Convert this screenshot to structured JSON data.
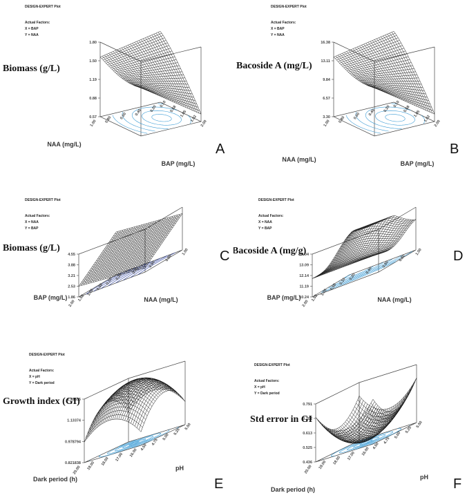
{
  "chart_data": [
    {
      "panel": "A",
      "type": "surface",
      "header": "DESIGN-EXPERT Plot",
      "factors_title": "Actual Factors:",
      "x_factor": "X = BAP",
      "y_factor": "Y = NAA",
      "zlabel": "Biomass (g/L)",
      "ylabel_left": "NAA (mg/L)",
      "xlabel_right": "BAP (mg/L)",
      "z_ticks": [
        "1.80",
        "1.50",
        "1.19",
        "0.88",
        "0.57"
      ],
      "left_ticks": [
        "1.00",
        "0.80",
        "0.60",
        "0.40",
        "0.20"
      ],
      "right_ticks": [
        "0.10",
        "0.58",
        "1.05",
        "1.52",
        "2.00"
      ],
      "z_range": [
        0.57,
        1.8
      ],
      "surface": {
        "a": 0.5,
        "b": 0.5,
        "p": 0.8,
        "q": 0.8,
        "base": 0.12,
        "peak": 0.95,
        "slope": 0.05,
        "kind": "saddle"
      }
    },
    {
      "panel": "B",
      "type": "surface",
      "header": "DESIGN-EXPERT Plot",
      "factors_title": "Actual Factors:",
      "x_factor": "X = BAP",
      "y_factor": "Y = NAA",
      "zlabel": "Bacoside A (mg/L)",
      "ylabel_left": "NAA (mg/L)",
      "xlabel_right": "BAP (mg/L)",
      "z_ticks": [
        "16.38",
        "13.11",
        "9.84",
        "6.57",
        "3.30"
      ],
      "left_ticks": [
        "1.00",
        "0.80",
        "0.60",
        "0.40",
        "0.20"
      ],
      "right_ticks": [
        "0.10",
        "0.58",
        "1.05",
        "1.52",
        "2.00"
      ],
      "z_range": [
        3.3,
        16.38
      ],
      "surface": {
        "kind": "saddle"
      }
    },
    {
      "panel": "C",
      "type": "surface",
      "header": "DESIGN-EXPERT Plot",
      "factors_title": "Actual Factors:",
      "x_factor": "X = NAA",
      "y_factor": "Y = BAP",
      "zlabel": "Biomass (g/L)",
      "ylabel_left": "BAP (mg/L)",
      "xlabel_right": "NAA (mg/L)",
      "z_ticks": [
        "4.55",
        "3.88",
        "3.21",
        "2.53",
        "1.86"
      ],
      "left_ticks": [
        "2.00",
        "1.52",
        "1.05",
        "0.58",
        "0.10"
      ],
      "right_ticks": [
        "0.20",
        "0.40",
        "0.60",
        "0.80",
        "1.00"
      ],
      "z_range": [
        1.86,
        4.55
      ],
      "surface": {
        "kind": "plane"
      }
    },
    {
      "panel": "D",
      "type": "surface",
      "header": "DESIGN-EXPERT Plot",
      "factors_title": "Actual Factors:",
      "x_factor": "X = NAA",
      "y_factor": "Y = BAP",
      "zlabel": "Bacoside A (mg/g)",
      "ylabel_left": "BAP (mg/L)",
      "xlabel_right": "NAA (mg/L)",
      "z_ticks": [
        "14.04",
        "13.09",
        "12.14",
        "11.19",
        "10.24"
      ],
      "left_ticks": [
        "2.00",
        "1.52",
        "1.05",
        "0.58",
        "0.10"
      ],
      "right_ticks": [
        "0.20",
        "0.40",
        "0.60",
        "0.80",
        "1.00"
      ],
      "z_range": [
        10.24,
        14.04
      ],
      "surface": {
        "kind": "wave"
      }
    },
    {
      "panel": "E",
      "type": "surface",
      "header": "DESIGN-EXPERT Plot",
      "factors_title": "Actual Factors:",
      "x_factor": "X = pH",
      "y_factor": "Y = Dark period",
      "zlabel": "Growth index (GI)",
      "ylabel_left": "Dark period (h)",
      "xlabel_right": "pH",
      "z_ticks": [
        "1.28655",
        "1.13374",
        "0.978794",
        "0.821838"
      ],
      "left_ticks": [
        "20.00",
        "19.00",
        "18.00",
        "17.00",
        "16.00"
      ],
      "right_ticks": [
        "4.50",
        "4.75",
        "5.00",
        "5.25",
        "5.50"
      ],
      "z_range": [
        0.821838,
        1.28655
      ],
      "surface": {
        "kind": "dome"
      }
    },
    {
      "panel": "F",
      "type": "surface",
      "header": "DESIGN-EXPERT Plot",
      "factors_title": "Actual Factors:",
      "x_factor": "X = pH",
      "y_factor": "Y = Dark period",
      "zlabel": "Std error in GI",
      "ylabel_left": "Dark period (h)",
      "xlabel_right": "pH",
      "z_ticks": [
        "0.791",
        "0.702",
        "0.613",
        "0.525",
        "0.436"
      ],
      "left_ticks": [
        "20.00",
        "19.00",
        "18.00",
        "17.00",
        "16.00"
      ],
      "right_ticks": [
        "4.50",
        "4.75",
        "5.00",
        "5.25",
        "5.50"
      ],
      "z_range": [
        0.436,
        0.791
      ],
      "surface": {
        "kind": "bowl"
      }
    }
  ],
  "colors": {
    "mesh": "#1a1a1a",
    "contour": "#3a9bd5",
    "frame": "#444444",
    "contour_dark": "#2a3f9e"
  }
}
